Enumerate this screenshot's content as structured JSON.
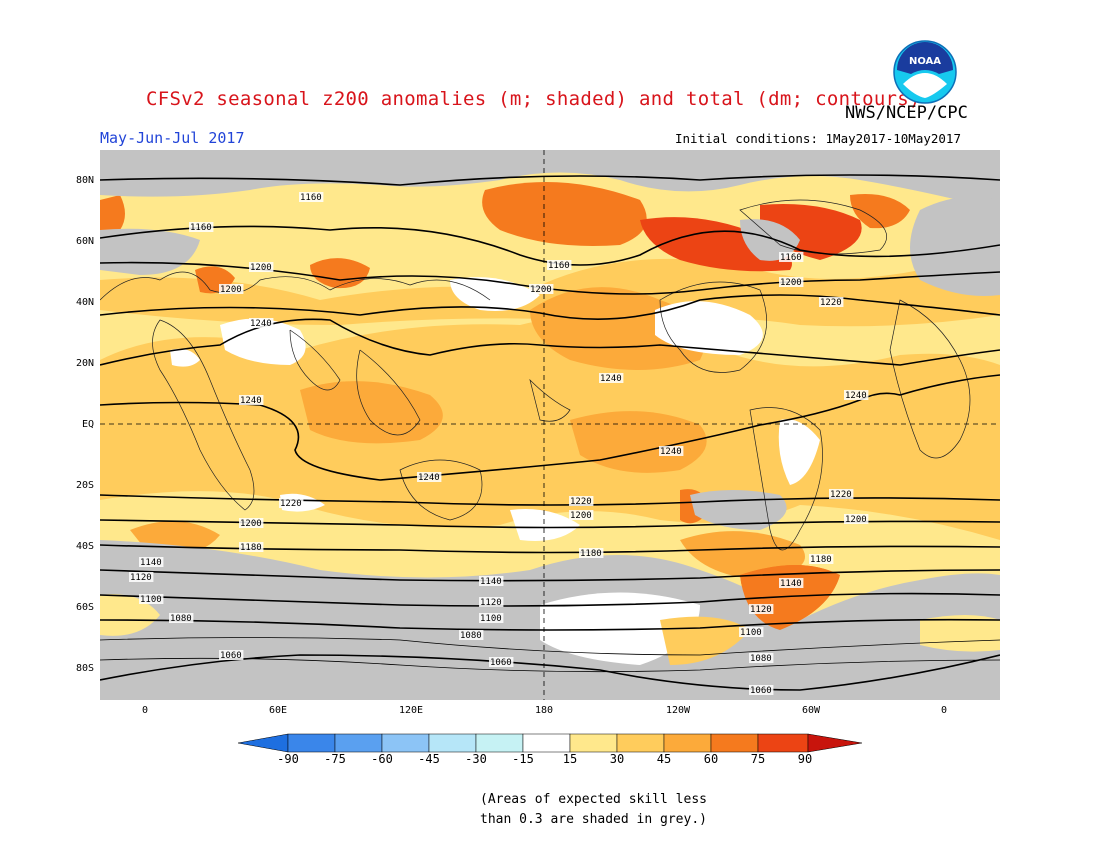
{
  "title": "CFSv2 seasonal z200 anomalies (m; shaded) and total (dm; contours)",
  "agency": "NWS/NCEP/CPC",
  "logo_text": "NOAA",
  "season": "May-Jun-Jul 2017",
  "initial_conditions": "Initial conditions: 1May2017-10May2017",
  "lat_labels": [
    "80N",
    "60N",
    "40N",
    "20N",
    "EQ",
    "20S",
    "40S",
    "60S",
    "80S"
  ],
  "lon_labels": [
    "0",
    "60E",
    "120E",
    "180",
    "120W",
    "60W",
    "0"
  ],
  "colorbar": {
    "ticks": [
      "-90",
      "-75",
      "-60",
      "-45",
      "-30",
      "-15",
      "15",
      "30",
      "45",
      "60",
      "75",
      "90"
    ],
    "colors": [
      "#1e6fe0",
      "#3a86ea",
      "#5aa0f0",
      "#8cc4f6",
      "#b6e6f8",
      "#ffffff",
      "#ffe88c",
      "#ffcc5c",
      "#fcaa3a",
      "#f57a1e",
      "#ec4414",
      "#c8140c"
    ]
  },
  "contour_labels": [
    "1060",
    "1080",
    "1100",
    "1120",
    "1140",
    "1160",
    "1180",
    "1200",
    "1220",
    "1240"
  ],
  "note_line1": "(Areas of expected skill less",
  "note_line2": "than 0.3 are shaded in grey.)"
}
